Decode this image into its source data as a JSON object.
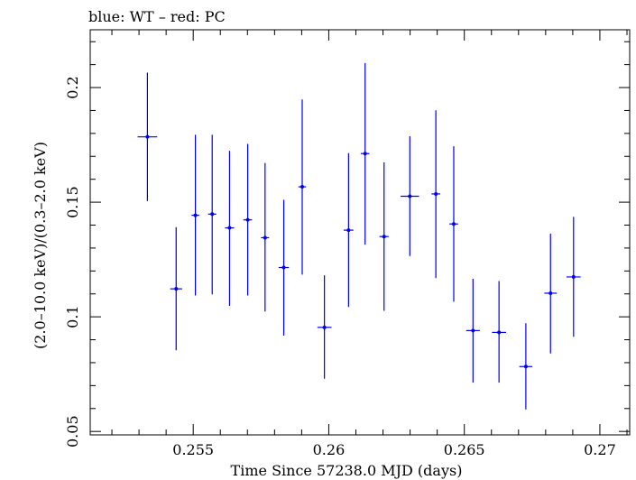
{
  "chart_data": {
    "type": "scatter",
    "title": "blue: WT – red: PC",
    "xlabel": "Time Since 57238.0 MJD (days)",
    "ylabel": "(2.0–10.0 keV)/(0.3–2.0 keV)",
    "xlim": [
      0.2512,
      0.2711
    ],
    "ylim": [
      0.0485,
      0.2252
    ],
    "x_ticks": [
      0.255,
      0.26,
      0.265,
      0.27
    ],
    "x_tick_labels": [
      "0.255",
      "0.26",
      "0.265",
      "0.27"
    ],
    "y_ticks": [
      0.05,
      0.1,
      0.15,
      0.2
    ],
    "y_tick_labels": [
      "0.05",
      "0.1",
      "0.15",
      "0.2"
    ],
    "grid": false,
    "legend": "none",
    "colors": {
      "WT": "#0000ee",
      "frame": "#000000"
    },
    "series": [
      {
        "name": "WT",
        "points": [
          {
            "x": 0.25331,
            "xerr": 0.00036,
            "y": 0.1785,
            "ylo": 0.1505,
            "yhi": 0.2065
          },
          {
            "x": 0.25437,
            "xerr": 0.00022,
            "y": 0.1122,
            "ylo": 0.0854,
            "yhi": 0.1391
          },
          {
            "x": 0.25508,
            "xerr": 0.00014,
            "y": 0.1443,
            "ylo": 0.1093,
            "yhi": 0.1794
          },
          {
            "x": 0.2557,
            "xerr": 0.00015,
            "y": 0.1448,
            "ylo": 0.1098,
            "yhi": 0.1794
          },
          {
            "x": 0.25634,
            "xerr": 0.00017,
            "y": 0.1388,
            "ylo": 0.1048,
            "yhi": 0.1724
          },
          {
            "x": 0.25701,
            "xerr": 0.00016,
            "y": 0.1423,
            "ylo": 0.1093,
            "yhi": 0.1754
          },
          {
            "x": 0.25765,
            "xerr": 0.00015,
            "y": 0.1345,
            "ylo": 0.1023,
            "yhi": 0.1671
          },
          {
            "x": 0.25834,
            "xerr": 0.00019,
            "y": 0.1215,
            "ylo": 0.0918,
            "yhi": 0.151
          },
          {
            "x": 0.25902,
            "xerr": 0.00014,
            "y": 0.1567,
            "ylo": 0.1184,
            "yhi": 0.1948
          },
          {
            "x": 0.25984,
            "xerr": 0.00026,
            "y": 0.0954,
            "ylo": 0.073,
            "yhi": 0.1181
          },
          {
            "x": 0.26073,
            "xerr": 0.00018,
            "y": 0.1378,
            "ylo": 0.1043,
            "yhi": 0.1714
          },
          {
            "x": 0.26134,
            "xerr": 0.00016,
            "y": 0.1712,
            "ylo": 0.1315,
            "yhi": 0.2107
          },
          {
            "x": 0.26204,
            "xerr": 0.00017,
            "y": 0.135,
            "ylo": 0.1026,
            "yhi": 0.1674
          },
          {
            "x": 0.26299,
            "xerr": 0.00034,
            "y": 0.1526,
            "ylo": 0.1265,
            "yhi": 0.1788
          },
          {
            "x": 0.26395,
            "xerr": 0.00016,
            "y": 0.1536,
            "ylo": 0.1169,
            "yhi": 0.1901
          },
          {
            "x": 0.26461,
            "xerr": 0.00016,
            "y": 0.1405,
            "ylo": 0.1066,
            "yhi": 0.1744
          },
          {
            "x": 0.26532,
            "xerr": 0.00025,
            "y": 0.094,
            "ylo": 0.0713,
            "yhi": 0.1166
          },
          {
            "x": 0.26628,
            "xerr": 0.00026,
            "y": 0.0932,
            "ylo": 0.0713,
            "yhi": 0.1156
          },
          {
            "x": 0.26727,
            "xerr": 0.00024,
            "y": 0.0783,
            "ylo": 0.0596,
            "yhi": 0.0972
          },
          {
            "x": 0.26818,
            "xerr": 0.00023,
            "y": 0.1103,
            "ylo": 0.084,
            "yhi": 0.1363
          },
          {
            "x": 0.26903,
            "xerr": 0.00026,
            "y": 0.1174,
            "ylo": 0.0913,
            "yhi": 0.1436
          }
        ]
      }
    ]
  }
}
